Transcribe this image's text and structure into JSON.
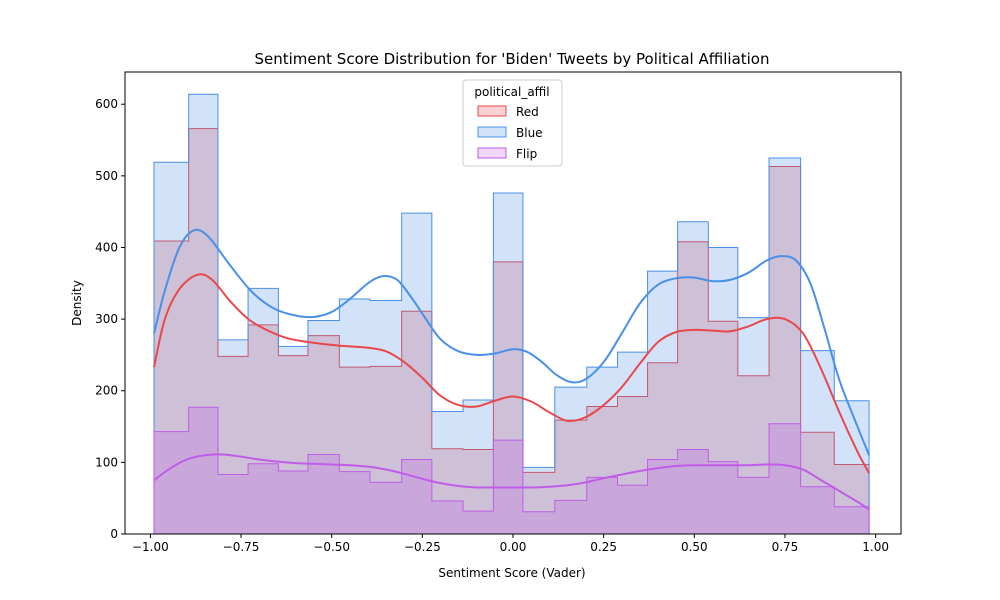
{
  "chart_data": {
    "type": "histogram",
    "title": "Sentiment Score Distribution for 'Biden' Tweets by Political Affiliation",
    "xlabel": "Sentiment Score (Vader)",
    "ylabel": "Density",
    "xlim": [
      -1.07,
      1.07
    ],
    "ylim": [
      0,
      645
    ],
    "xticks": [
      -1.0,
      -0.75,
      -0.5,
      -0.25,
      0.0,
      0.25,
      0.5,
      0.75,
      1.0
    ],
    "xtick_labels": [
      "−1.00",
      "−0.75",
      "−0.50",
      "−0.25",
      "0.00",
      "0.25",
      "0.50",
      "0.75",
      "1.00"
    ],
    "yticks": [
      0,
      100,
      200,
      300,
      400,
      500,
      600
    ],
    "ytick_labels": [
      "0",
      "100",
      "200",
      "300",
      "400",
      "500",
      "600"
    ],
    "bin_edges": [
      -0.99,
      -0.8944,
      -0.8136,
      -0.7306,
      -0.647,
      -0.5655,
      -0.4789,
      -0.3944,
      -0.307,
      -0.2238,
      -0.1378,
      -0.0541,
      0.0273,
      0.1153,
      0.2035,
      0.2882,
      0.3711,
      0.454,
      0.5386,
      0.62,
      0.7061,
      0.7932,
      0.886,
      0.982
    ],
    "legend": {
      "title": "political_affil",
      "position": "upper-center",
      "entries": [
        "Red",
        "Blue",
        "Flip"
      ]
    },
    "series": [
      {
        "name": "Red",
        "color": "#e8484a",
        "fill": "#f7c0c1",
        "values": [
          409,
          566,
          248,
          292,
          249,
          277,
          233,
          234,
          311,
          119,
          118,
          380,
          86,
          159,
          178,
          192,
          239,
          408,
          297,
          221,
          513,
          142,
          97
        ],
        "kde": [
          [
            -0.99,
            233
          ],
          [
            -0.96,
            300
          ],
          [
            -0.92,
            342
          ],
          [
            -0.87,
            362
          ],
          [
            -0.83,
            355
          ],
          [
            -0.78,
            325
          ],
          [
            -0.73,
            300
          ],
          [
            -0.68,
            285
          ],
          [
            -0.62,
            273
          ],
          [
            -0.55,
            267
          ],
          [
            -0.48,
            263
          ],
          [
            -0.4,
            260
          ],
          [
            -0.35,
            255
          ],
          [
            -0.3,
            240
          ],
          [
            -0.25,
            218
          ],
          [
            -0.2,
            193
          ],
          [
            -0.15,
            180
          ],
          [
            -0.1,
            178
          ],
          [
            -0.05,
            186
          ],
          [
            0.0,
            192
          ],
          [
            0.05,
            185
          ],
          [
            0.1,
            170
          ],
          [
            0.15,
            158
          ],
          [
            0.2,
            163
          ],
          [
            0.25,
            180
          ],
          [
            0.3,
            205
          ],
          [
            0.35,
            238
          ],
          [
            0.4,
            268
          ],
          [
            0.45,
            282
          ],
          [
            0.5,
            285
          ],
          [
            0.55,
            284
          ],
          [
            0.6,
            283
          ],
          [
            0.65,
            290
          ],
          [
            0.7,
            300
          ],
          [
            0.75,
            300
          ],
          [
            0.8,
            280
          ],
          [
            0.85,
            230
          ],
          [
            0.9,
            170
          ],
          [
            0.95,
            115
          ],
          [
            0.982,
            85
          ]
        ]
      },
      {
        "name": "Blue",
        "color": "#4a90e8",
        "fill": "#c6dbfa",
        "values": [
          519,
          614,
          271,
          343,
          262,
          298,
          328,
          326,
          448,
          171,
          187,
          476,
          93,
          205,
          233,
          254,
          367,
          436,
          400,
          302,
          525,
          256,
          186
        ],
        "kde": [
          [
            -0.99,
            280
          ],
          [
            -0.96,
            340
          ],
          [
            -0.92,
            400
          ],
          [
            -0.88,
            424
          ],
          [
            -0.84,
            415
          ],
          [
            -0.78,
            375
          ],
          [
            -0.72,
            338
          ],
          [
            -0.66,
            315
          ],
          [
            -0.6,
            305
          ],
          [
            -0.55,
            303
          ],
          [
            -0.5,
            310
          ],
          [
            -0.45,
            328
          ],
          [
            -0.4,
            350
          ],
          [
            -0.36,
            360
          ],
          [
            -0.32,
            355
          ],
          [
            -0.28,
            330
          ],
          [
            -0.24,
            300
          ],
          [
            -0.2,
            272
          ],
          [
            -0.15,
            255
          ],
          [
            -0.1,
            250
          ],
          [
            -0.05,
            252
          ],
          [
            0.0,
            258
          ],
          [
            0.04,
            254
          ],
          [
            0.08,
            240
          ],
          [
            0.12,
            222
          ],
          [
            0.16,
            212
          ],
          [
            0.2,
            216
          ],
          [
            0.25,
            240
          ],
          [
            0.3,
            280
          ],
          [
            0.35,
            322
          ],
          [
            0.4,
            348
          ],
          [
            0.45,
            357
          ],
          [
            0.5,
            358
          ],
          [
            0.55,
            353
          ],
          [
            0.6,
            355
          ],
          [
            0.65,
            365
          ],
          [
            0.7,
            382
          ],
          [
            0.74,
            388
          ],
          [
            0.78,
            382
          ],
          [
            0.82,
            350
          ],
          [
            0.86,
            285
          ],
          [
            0.9,
            215
          ],
          [
            0.95,
            150
          ],
          [
            0.982,
            110
          ]
        ]
      },
      {
        "name": "Flip",
        "color": "#c05ce8",
        "fill": "#d8a6e6",
        "values": [
          143,
          177,
          83,
          98,
          88,
          111,
          87,
          72,
          104,
          46,
          32,
          131,
          31,
          47,
          79,
          68,
          104,
          118,
          101,
          79,
          154,
          66,
          38
        ],
        "kde": [
          [
            -0.99,
            75
          ],
          [
            -0.95,
            90
          ],
          [
            -0.9,
            104
          ],
          [
            -0.85,
            110
          ],
          [
            -0.8,
            111
          ],
          [
            -0.75,
            108
          ],
          [
            -0.7,
            104
          ],
          [
            -0.65,
            101
          ],
          [
            -0.6,
            99
          ],
          [
            -0.55,
            98
          ],
          [
            -0.5,
            97
          ],
          [
            -0.45,
            96
          ],
          [
            -0.4,
            94
          ],
          [
            -0.35,
            90
          ],
          [
            -0.3,
            84
          ],
          [
            -0.25,
            77
          ],
          [
            -0.2,
            71
          ],
          [
            -0.15,
            67
          ],
          [
            -0.1,
            65
          ],
          [
            -0.05,
            65
          ],
          [
            0.0,
            65
          ],
          [
            0.05,
            65
          ],
          [
            0.1,
            66
          ],
          [
            0.15,
            68
          ],
          [
            0.2,
            72
          ],
          [
            0.25,
            78
          ],
          [
            0.3,
            83
          ],
          [
            0.35,
            88
          ],
          [
            0.4,
            92
          ],
          [
            0.45,
            95
          ],
          [
            0.5,
            96
          ],
          [
            0.55,
            96
          ],
          [
            0.6,
            96
          ],
          [
            0.65,
            96
          ],
          [
            0.7,
            97
          ],
          [
            0.75,
            96
          ],
          [
            0.8,
            90
          ],
          [
            0.85,
            75
          ],
          [
            0.9,
            60
          ],
          [
            0.95,
            45
          ],
          [
            0.982,
            34
          ]
        ]
      }
    ]
  }
}
